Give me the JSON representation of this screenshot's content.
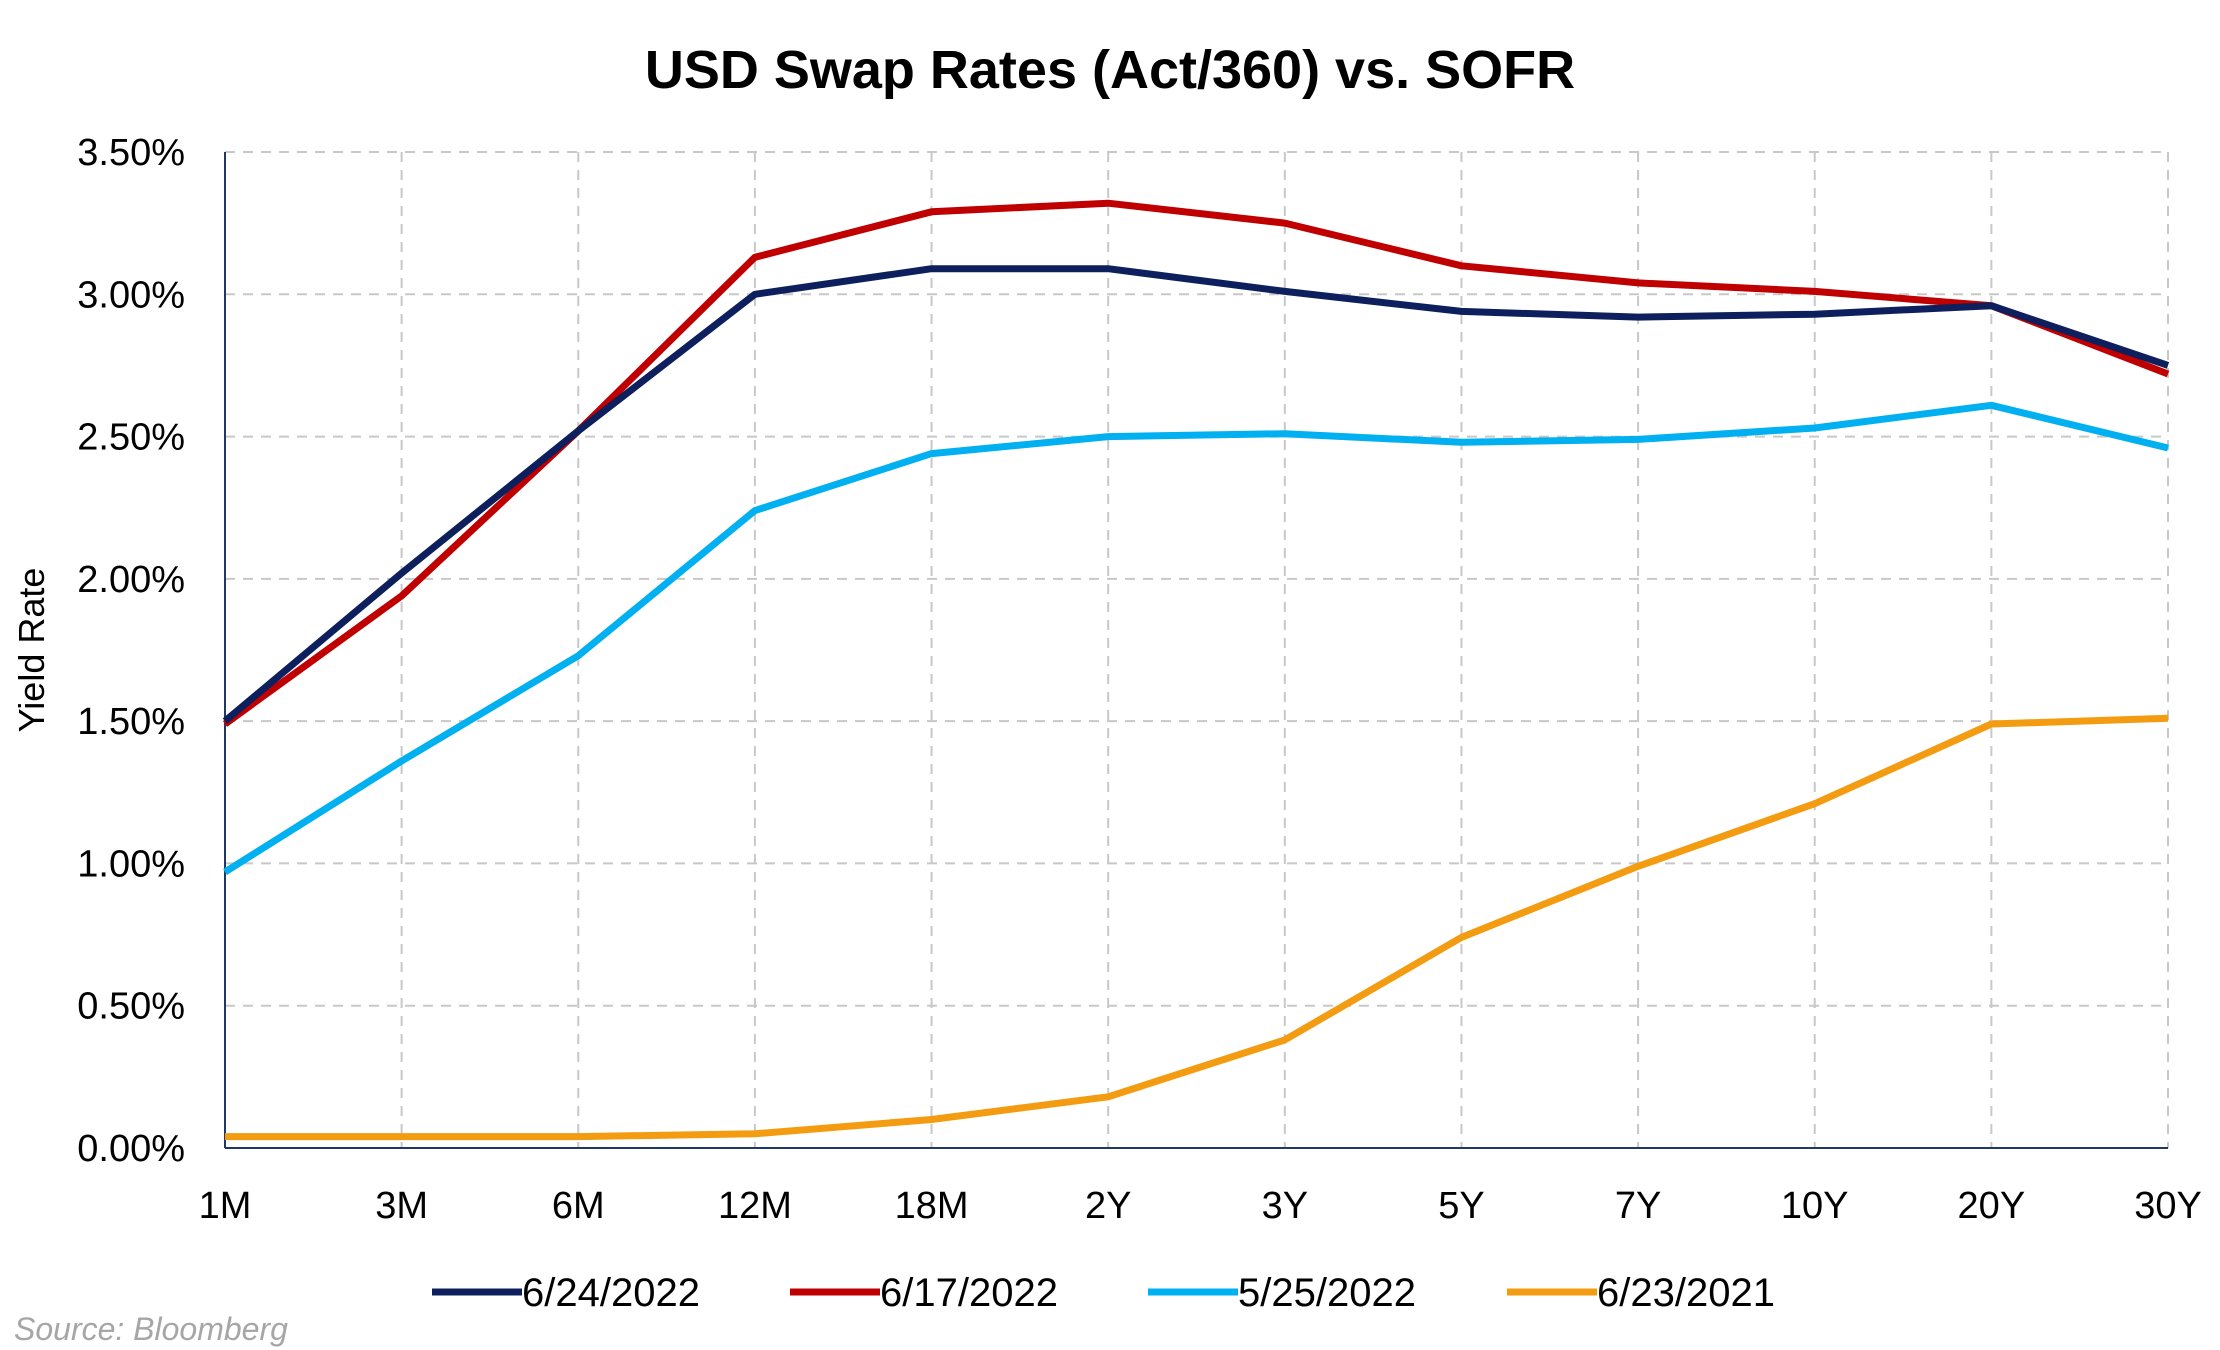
{
  "chart_data": {
    "type": "line",
    "title": "USD Swap Rates (Act/360) vs. SOFR",
    "xlabel": "",
    "ylabel": "Yield Rate",
    "source": "Source: Bloomberg",
    "categories": [
      "1M",
      "3M",
      "6M",
      "12M",
      "18M",
      "2Y",
      "3Y",
      "5Y",
      "7Y",
      "10Y",
      "20Y",
      "30Y"
    ],
    "ylim": [
      0,
      3.5
    ],
    "y_ticks": [
      0,
      0.5,
      1,
      1.5,
      2,
      2.5,
      3,
      3.5
    ],
    "y_tick_labels": [
      "0.00%",
      "0.50%",
      "1.00%",
      "1.50%",
      "2.00%",
      "2.50%",
      "3.00%",
      "3.50%"
    ],
    "grid": true,
    "legend_position": "bottom",
    "series": [
      {
        "name": "6/24/2022",
        "color": "#0d1f5c",
        "values": [
          1.5,
          2.02,
          2.52,
          3.0,
          3.09,
          3.09,
          3.01,
          2.94,
          2.92,
          2.93,
          2.96,
          2.75
        ]
      },
      {
        "name": "6/17/2022",
        "color": "#c00000",
        "values": [
          1.49,
          1.94,
          2.52,
          3.13,
          3.29,
          3.32,
          3.25,
          3.1,
          3.04,
          3.01,
          2.96,
          2.72
        ]
      },
      {
        "name": "5/25/2022",
        "color": "#00b0f0",
        "values": [
          0.97,
          1.36,
          1.73,
          2.24,
          2.44,
          2.5,
          2.51,
          2.48,
          2.49,
          2.53,
          2.61,
          2.46
        ]
      },
      {
        "name": "6/23/2021",
        "color": "#f39c12",
        "values": [
          0.04,
          0.04,
          0.04,
          0.05,
          0.1,
          0.18,
          0.38,
          0.74,
          0.99,
          1.21,
          1.49,
          1.51
        ]
      }
    ]
  }
}
